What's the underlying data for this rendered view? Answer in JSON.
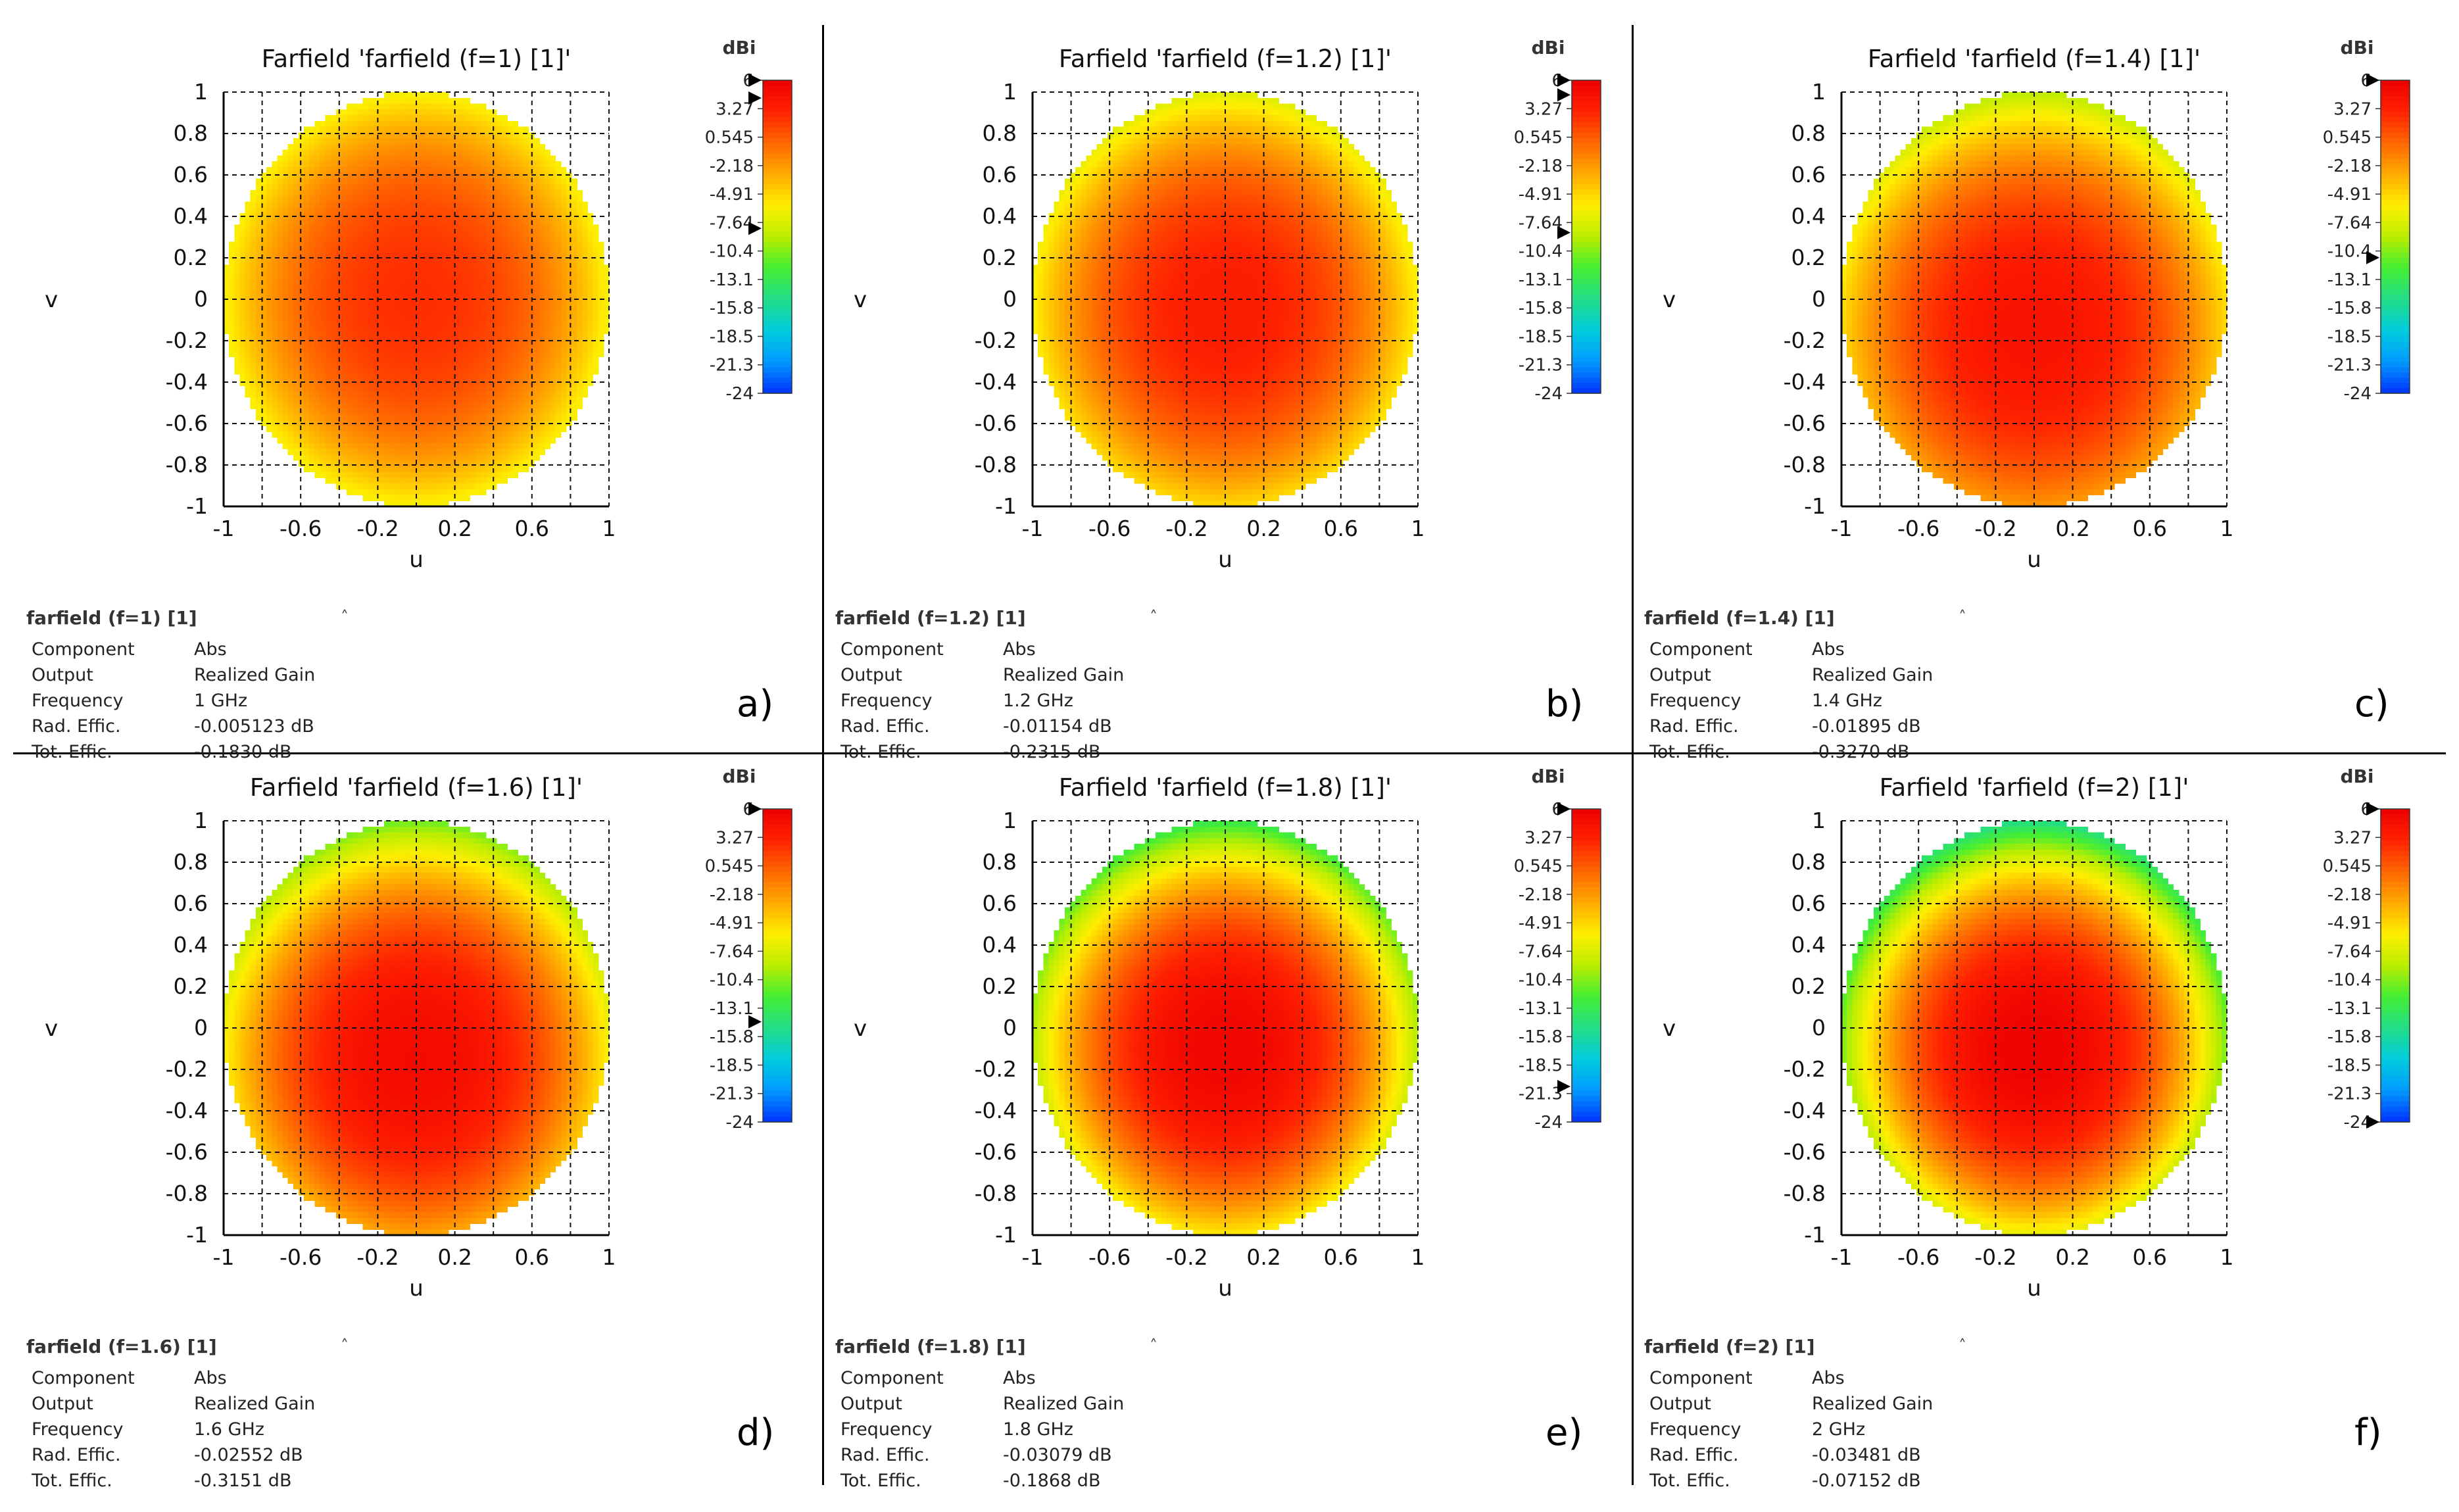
{
  "figure": {
    "divider_color": "#000000",
    "colormap": [
      "#0033ff",
      "#0099ff",
      "#00ccdd",
      "#22dd88",
      "#44ee33",
      "#bbee00",
      "#ffee00",
      "#ffaa00",
      "#ff6600",
      "#ff2200",
      "#ee0000"
    ]
  },
  "chart_data": [
    {
      "type": "heatmap",
      "title": "Farfield 'farfield (f=1) [1]'",
      "xlabel": "u",
      "ylabel": "v",
      "xlim": [
        -1,
        1
      ],
      "ylim": [
        -1,
        1
      ],
      "x_ticks": [
        "-1",
        "-0.6",
        "-0.2",
        "0.2",
        "0.6",
        "1"
      ],
      "y_ticks": [
        "1",
        "0.8",
        "0.6",
        "0.4",
        "0.2",
        "0",
        "-0.2",
        "-0.4",
        "-0.6",
        "-0.8",
        "-1"
      ],
      "grid": true,
      "colorbar": {
        "unit": "dBi",
        "min": -24,
        "max": 6,
        "ticks": [
          "6",
          "3.27",
          "0.545",
          "-2.18",
          "-4.91",
          "-7.64",
          "-10.4",
          "-13.1",
          "-15.8",
          "-18.5",
          "-21.3",
          "-24"
        ],
        "markers": [
          6,
          4.3,
          -8.2
        ]
      },
      "peak_gain_dbi": 2.5,
      "edge_gain_dbi": -6.5,
      "peak_v": 0.0,
      "legend": {
        "title": "farfield (f=1) [1]",
        "rows": [
          {
            "key": "Component",
            "value": "Abs"
          },
          {
            "key": "Output",
            "value": "Realized Gain"
          },
          {
            "key": "Frequency",
            "value": "1 GHz"
          },
          {
            "key": "Rad. Effic.",
            "value": "-0.005123 dB"
          },
          {
            "key": "Tot. Effic.",
            "value": "-0.1830 dB"
          }
        ]
      },
      "panel_label": "a)"
    },
    {
      "type": "heatmap",
      "title": "Farfield 'farfield (f=1.2) [1]'",
      "xlabel": "u",
      "ylabel": "v",
      "xlim": [
        -1,
        1
      ],
      "ylim": [
        -1,
        1
      ],
      "x_ticks": [
        "-1",
        "-0.6",
        "-0.2",
        "0.2",
        "0.6",
        "1"
      ],
      "y_ticks": [
        "1",
        "0.8",
        "0.6",
        "0.4",
        "0.2",
        "0",
        "-0.2",
        "-0.4",
        "-0.6",
        "-0.8",
        "-1"
      ],
      "grid": true,
      "colorbar": {
        "unit": "dBi",
        "min": -24,
        "max": 6,
        "ticks": [
          "6",
          "3.27",
          "0.545",
          "-2.18",
          "-4.91",
          "-7.64",
          "-10.4",
          "-13.1",
          "-15.8",
          "-18.5",
          "-21.3",
          "-24"
        ],
        "markers": [
          6,
          4.6,
          -8.6
        ]
      },
      "peak_gain_dbi": 3.5,
      "edge_gain_dbi": -7.5,
      "peak_v": -0.05,
      "legend": {
        "title": "farfield (f=1.2) [1]",
        "rows": [
          {
            "key": "Component",
            "value": "Abs"
          },
          {
            "key": "Output",
            "value": "Realized Gain"
          },
          {
            "key": "Frequency",
            "value": "1.2 GHz"
          },
          {
            "key": "Rad. Effic.",
            "value": "-0.01154 dB"
          },
          {
            "key": "Tot. Effic.",
            "value": "-0.2315 dB"
          }
        ]
      },
      "panel_label": "b)"
    },
    {
      "type": "heatmap",
      "title": "Farfield 'farfield (f=1.4) [1]'",
      "xlabel": "u",
      "ylabel": "v",
      "xlim": [
        -1,
        1
      ],
      "ylim": [
        -1,
        1
      ],
      "x_ticks": [
        "-1",
        "-0.6",
        "-0.2",
        "0.2",
        "0.6",
        "1"
      ],
      "y_ticks": [
        "1",
        "0.8",
        "0.6",
        "0.4",
        "0.2",
        "0",
        "-0.2",
        "-0.4",
        "-0.6",
        "-0.8",
        "-1"
      ],
      "grid": true,
      "colorbar": {
        "unit": "dBi",
        "min": -24,
        "max": 6,
        "ticks": [
          "6",
          "3.27",
          "0.545",
          "-2.18",
          "-4.91",
          "-7.64",
          "-10.4",
          "-13.1",
          "-15.8",
          "-18.5",
          "-21.3",
          "-24"
        ],
        "markers": [
          6,
          -11.0
        ]
      },
      "peak_gain_dbi": 4.3,
      "edge_gain_dbi": -9.0,
      "peak_v": -0.15,
      "legend": {
        "title": "farfield (f=1.4) [1]",
        "rows": [
          {
            "key": "Component",
            "value": "Abs"
          },
          {
            "key": "Output",
            "value": "Realized Gain"
          },
          {
            "key": "Frequency",
            "value": "1.4 GHz"
          },
          {
            "key": "Rad. Effic.",
            "value": "-0.01895 dB"
          },
          {
            "key": "Tot. Effic.",
            "value": "-0.3270 dB"
          }
        ]
      },
      "panel_label": "c)"
    },
    {
      "type": "heatmap",
      "title": "Farfield 'farfield (f=1.6) [1]'",
      "xlabel": "u",
      "ylabel": "v",
      "xlim": [
        -1,
        1
      ],
      "ylim": [
        -1,
        1
      ],
      "x_ticks": [
        "-1",
        "-0.6",
        "-0.2",
        "0.2",
        "0.6",
        "1"
      ],
      "y_ticks": [
        "1",
        "0.8",
        "0.6",
        "0.4",
        "0.2",
        "0",
        "-0.2",
        "-0.4",
        "-0.6",
        "-0.8",
        "-1"
      ],
      "grid": true,
      "colorbar": {
        "unit": "dBi",
        "min": -24,
        "max": 6,
        "ticks": [
          "6",
          "3.27",
          "0.545",
          "-2.18",
          "-4.91",
          "-7.64",
          "-10.4",
          "-13.1",
          "-15.8",
          "-18.5",
          "-21.3",
          "-24"
        ],
        "markers": [
          6,
          -14.4
        ]
      },
      "peak_gain_dbi": 5.0,
      "edge_gain_dbi": -11.0,
      "peak_v": -0.15,
      "legend": {
        "title": "farfield (f=1.6) [1]",
        "rows": [
          {
            "key": "Component",
            "value": "Abs"
          },
          {
            "key": "Output",
            "value": "Realized Gain"
          },
          {
            "key": "Frequency",
            "value": "1.6 GHz"
          },
          {
            "key": "Rad. Effic.",
            "value": "-0.02552 dB"
          },
          {
            "key": "Tot. Effic.",
            "value": "-0.3151 dB"
          }
        ]
      },
      "panel_label": "d)"
    },
    {
      "type": "heatmap",
      "title": "Farfield 'farfield (f=1.8) [1]'",
      "xlabel": "u",
      "ylabel": "v",
      "xlim": [
        -1,
        1
      ],
      "ylim": [
        -1,
        1
      ],
      "x_ticks": [
        "-1",
        "-0.6",
        "-0.2",
        "0.2",
        "0.6",
        "1"
      ],
      "y_ticks": [
        "1",
        "0.8",
        "0.6",
        "0.4",
        "0.2",
        "0",
        "-0.2",
        "-0.4",
        "-0.6",
        "-0.8",
        "-1"
      ],
      "grid": true,
      "colorbar": {
        "unit": "dBi",
        "min": -24,
        "max": 6,
        "ticks": [
          "6",
          "3.27",
          "0.545",
          "-2.18",
          "-4.91",
          "-7.64",
          "-10.4",
          "-13.1",
          "-15.8",
          "-18.5",
          "-21.3",
          "-24"
        ],
        "markers": [
          6,
          -20.6
        ]
      },
      "peak_gain_dbi": 5.5,
      "edge_gain_dbi": -13.0,
      "peak_v": -0.1,
      "legend": {
        "title": "farfield (f=1.8) [1]",
        "rows": [
          {
            "key": "Component",
            "value": "Abs"
          },
          {
            "key": "Output",
            "value": "Realized Gain"
          },
          {
            "key": "Frequency",
            "value": "1.8 GHz"
          },
          {
            "key": "Rad. Effic.",
            "value": "-0.03079 dB"
          },
          {
            "key": "Tot. Effic.",
            "value": "-0.1868 dB"
          }
        ]
      },
      "panel_label": "e)"
    },
    {
      "type": "heatmap",
      "title": "Farfield 'farfield (f=2) [1]'",
      "xlabel": "u",
      "ylabel": "v",
      "xlim": [
        -1,
        1
      ],
      "ylim": [
        -1,
        1
      ],
      "x_ticks": [
        "-1",
        "-0.6",
        "-0.2",
        "0.2",
        "0.6",
        "1"
      ],
      "y_ticks": [
        "1",
        "0.8",
        "0.6",
        "0.4",
        "0.2",
        "0",
        "-0.2",
        "-0.4",
        "-0.6",
        "-0.8",
        "-1"
      ],
      "grid": true,
      "colorbar": {
        "unit": "dBi",
        "min": -24,
        "max": 6,
        "ticks": [
          "6",
          "3.27",
          "0.545",
          "-2.18",
          "-4.91",
          "-7.64",
          "-10.4",
          "-13.1",
          "-15.8",
          "-18.5",
          "-21.3",
          "-24"
        ],
        "markers": [
          6,
          -24
        ]
      },
      "peak_gain_dbi": 5.8,
      "edge_gain_dbi": -15.0,
      "peak_v": -0.1,
      "legend": {
        "title": "farfield (f=2) [1]",
        "rows": [
          {
            "key": "Component",
            "value": "Abs"
          },
          {
            "key": "Output",
            "value": "Realized Gain"
          },
          {
            "key": "Frequency",
            "value": "2 GHz"
          },
          {
            "key": "Rad. Effic.",
            "value": "-0.03481 dB"
          },
          {
            "key": "Tot. Effic.",
            "value": "-0.07152 dB"
          }
        ]
      },
      "panel_label": "f)"
    }
  ]
}
